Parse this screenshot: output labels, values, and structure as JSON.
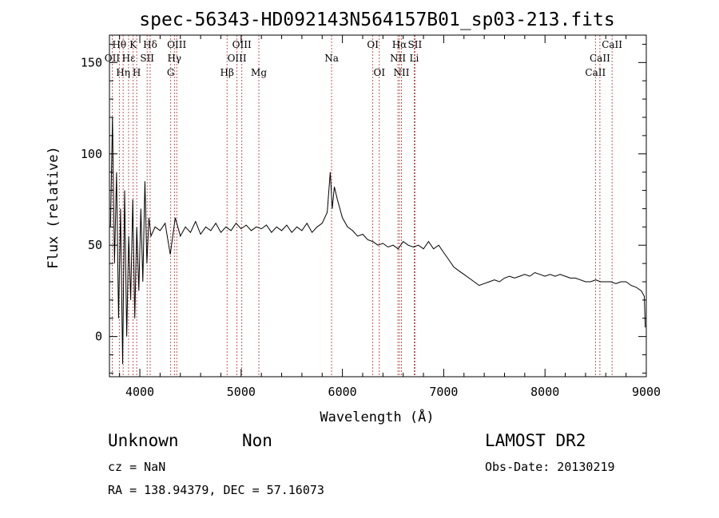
{
  "chart_data": {
    "type": "line",
    "title": "spec-56343-HD092143N564157B01_sp03-213.fits",
    "xlabel": "Wavelength (Å)",
    "ylabel": "Flux (relative)",
    "xlim": [
      3700,
      9000
    ],
    "ylim": [
      -22,
      165
    ],
    "x_ticks": [
      4000,
      5000,
      6000,
      7000,
      8000,
      9000
    ],
    "y_ticks": [
      0,
      50,
      100,
      150
    ],
    "grid": false,
    "series": [
      {
        "color": "#000000",
        "x": [
          3710,
          3730,
          3750,
          3770,
          3790,
          3810,
          3830,
          3850,
          3870,
          3890,
          3910,
          3930,
          3950,
          3970,
          3990,
          4010,
          4030,
          4050,
          4070,
          4090,
          4110,
          4150,
          4200,
          4250,
          4300,
          4350,
          4400,
          4450,
          4500,
          4550,
          4600,
          4650,
          4700,
          4750,
          4800,
          4850,
          4900,
          4950,
          5000,
          5050,
          5100,
          5150,
          5200,
          5250,
          5300,
          5350,
          5400,
          5450,
          5500,
          5550,
          5600,
          5650,
          5700,
          5750,
          5800,
          5850,
          5880,
          5900,
          5920,
          5950,
          6000,
          6050,
          6100,
          6150,
          6200,
          6250,
          6300,
          6350,
          6400,
          6450,
          6500,
          6550,
          6600,
          6650,
          6700,
          6750,
          6800,
          6850,
          6900,
          6950,
          7000,
          7050,
          7100,
          7150,
          7200,
          7250,
          7300,
          7350,
          7400,
          7450,
          7500,
          7550,
          7600,
          7650,
          7700,
          7750,
          7800,
          7850,
          7900,
          7950,
          8000,
          8050,
          8100,
          8150,
          8200,
          8250,
          8300,
          8350,
          8400,
          8450,
          8500,
          8550,
          8600,
          8650,
          8700,
          8750,
          8800,
          8850,
          8900,
          8950,
          8980,
          8990
        ],
        "y": [
          60,
          120,
          40,
          90,
          10,
          70,
          -15,
          80,
          0,
          55,
          20,
          75,
          10,
          60,
          25,
          70,
          30,
          85,
          40,
          65,
          55,
          60,
          58,
          62,
          45,
          65,
          55,
          60,
          57,
          63,
          56,
          60,
          58,
          62,
          57,
          60,
          58,
          62,
          59,
          61,
          58,
          60,
          59,
          61,
          57,
          60,
          58,
          61,
          57,
          60,
          58,
          62,
          57,
          60,
          62,
          68,
          90,
          70,
          82,
          75,
          65,
          60,
          58,
          55,
          56,
          53,
          52,
          50,
          51,
          49,
          50,
          48,
          52,
          50,
          49,
          50,
          48,
          52,
          48,
          50,
          46,
          42,
          38,
          36,
          34,
          32,
          30,
          28,
          29,
          30,
          31,
          30,
          32,
          33,
          32,
          33,
          34,
          33,
          35,
          34,
          33,
          34,
          33,
          34,
          33,
          32,
          32,
          31,
          30,
          30,
          31,
          30,
          30,
          30,
          29,
          30,
          30,
          28,
          27,
          25,
          22,
          5
        ]
      }
    ],
    "spectral_lines": [
      {
        "label": "Hθ",
        "wavelength": 3797,
        "row": 1
      },
      {
        "label": "OII",
        "wavelength": 3727,
        "row": 2
      },
      {
        "label": "Hε",
        "wavelength": 3889,
        "row": 2
      },
      {
        "label": "K",
        "wavelength": 3934,
        "row": 1
      },
      {
        "label": "Hη",
        "wavelength": 3835,
        "row": 3
      },
      {
        "label": "H",
        "wavelength": 3969,
        "row": 3
      },
      {
        "label": "SII",
        "wavelength": 4072,
        "row": 2
      },
      {
        "label": "Hδ",
        "wavelength": 4102,
        "row": 1
      },
      {
        "label": "OIII",
        "wavelength": 4364,
        "row": 1
      },
      {
        "label": "Hγ",
        "wavelength": 4341,
        "row": 2
      },
      {
        "label": "G",
        "wavelength": 4305,
        "row": 3
      },
      {
        "label": "Hβ",
        "wavelength": 4861,
        "row": 3
      },
      {
        "label": "OIII",
        "wavelength": 4959,
        "row": 2
      },
      {
        "label": "OIII",
        "wavelength": 5007,
        "row": 1
      },
      {
        "label": "Mg",
        "wavelength": 5175,
        "row": 3
      },
      {
        "label": "Na",
        "wavelength": 5893,
        "row": 2
      },
      {
        "label": "OI",
        "wavelength": 6300,
        "row": 1
      },
      {
        "label": "OI",
        "wavelength": 6364,
        "row": 3
      },
      {
        "label": "NII",
        "wavelength": 6548,
        "row": 2
      },
      {
        "label": "Hα",
        "wavelength": 6563,
        "row": 1
      },
      {
        "label": "NII",
        "wavelength": 6583,
        "row": 3
      },
      {
        "label": "SII",
        "wavelength": 6716,
        "row": 1
      },
      {
        "label": "Li",
        "wavelength": 6708,
        "row": 2
      },
      {
        "label": "CaII",
        "wavelength": 8498,
        "row": 3
      },
      {
        "label": "CaII",
        "wavelength": 8542,
        "row": 2
      },
      {
        "label": "CaII",
        "wavelength": 8662,
        "row": 1
      }
    ]
  },
  "info": {
    "class": "Unknown",
    "subclass": "Non",
    "cz": "cz = NaN",
    "coords": "RA = 138.94379, DEC =  57.16073",
    "survey": "LAMOST DR2",
    "obs_date": "Obs-Date: 20130219"
  }
}
